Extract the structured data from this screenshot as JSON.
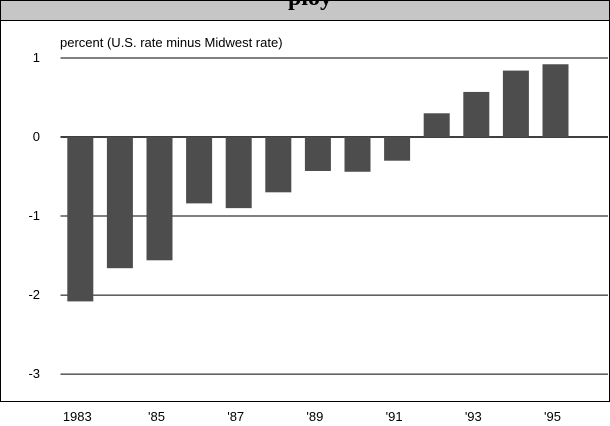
{
  "chart_data": {
    "type": "bar",
    "title": "ploy",
    "subtitle": "percent (U.S. rate minus Midwest rate)",
    "categories": [
      "1983",
      null,
      "'85",
      null,
      "'87",
      null,
      "'89",
      null,
      "'91",
      null,
      "'93",
      null,
      "'95"
    ],
    "values": [
      -2.08,
      -1.66,
      -1.56,
      -0.84,
      -0.9,
      -0.7,
      -0.43,
      -0.44,
      -0.3,
      0.3,
      0.57,
      0.84,
      0.92
    ],
    "color": "#4d4d4d",
    "ylim": [
      -3.34,
      1.48
    ],
    "yticks": [
      1,
      0,
      -1,
      -2,
      -3
    ],
    "grid": true
  }
}
